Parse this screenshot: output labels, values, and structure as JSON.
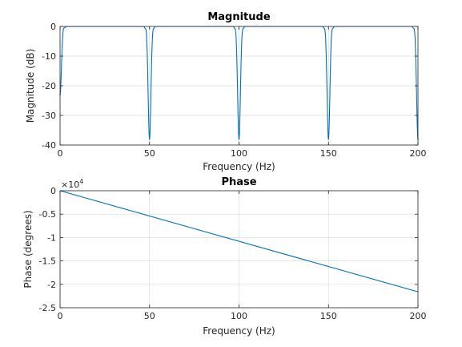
{
  "chart_data": [
    {
      "type": "line",
      "title": "Magnitude",
      "xlabel": "Frequency (Hz)",
      "ylabel": "Magnitude (dB)",
      "xlim": [
        0,
        200
      ],
      "ylim": [
        -40,
        0
      ],
      "xticks": [
        "0",
        "50",
        "100",
        "150",
        "200"
      ],
      "yticks": [
        "0",
        "-10",
        "-20",
        "-30",
        "-40"
      ],
      "grid": true,
      "line_color": "#0072BD",
      "notches": [
        {
          "x": 0,
          "y": -23
        },
        {
          "x": 50,
          "y": -38
        },
        {
          "x": 100,
          "y": -38
        },
        {
          "x": 150,
          "y": -38
        },
        {
          "x": 200,
          "y": -38
        }
      ],
      "baseline_db": 0
    },
    {
      "type": "line",
      "title": "Phase",
      "xlabel": "Frequency (Hz)",
      "ylabel": "Phase (degrees)",
      "xlim": [
        0,
        200
      ],
      "ylim": [
        -2.5,
        0
      ],
      "y_multiplier": "×10",
      "y_multiplier_exp": "4",
      "xticks": [
        "0",
        "50",
        "100",
        "150",
        "200"
      ],
      "yticks": [
        "0",
        "-0.5",
        "-1",
        "-1.5",
        "-2",
        "-2.5"
      ],
      "grid": true,
      "line_color": "#0072BD",
      "x": [
        0,
        200
      ],
      "y": [
        0,
        -2.16
      ]
    }
  ]
}
